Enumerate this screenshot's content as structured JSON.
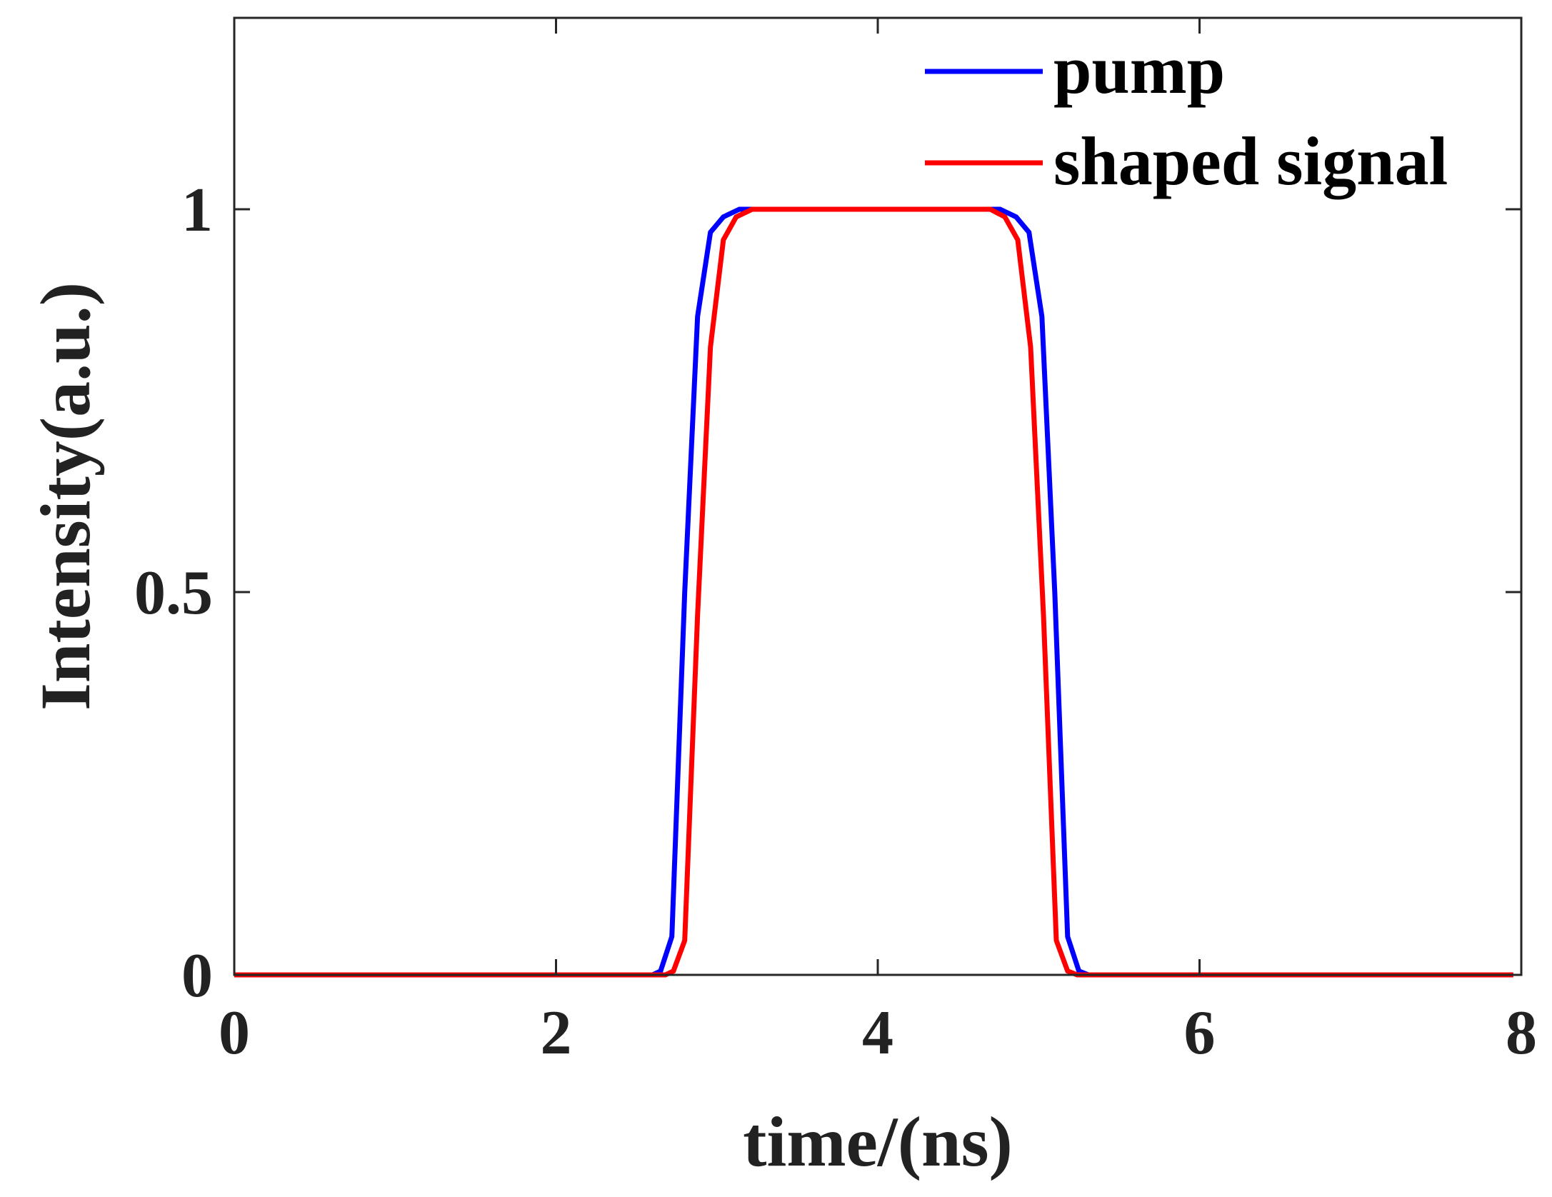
{
  "chart_data": {
    "type": "line",
    "xlabel": "time/(ns)",
    "ylabel": "Intensity(a.u.)",
    "xlim": [
      0,
      8
    ],
    "ylim": [
      0,
      1.25
    ],
    "xticks": [
      0,
      2,
      4,
      6,
      8
    ],
    "xtick_labels": [
      "0",
      "2",
      "4",
      "6",
      "8"
    ],
    "yticks": [
      0,
      0.5,
      1
    ],
    "ytick_labels": [
      "0",
      "0.5",
      "1"
    ],
    "grid": false,
    "legend_position": "top-right",
    "series": [
      {
        "name": "pump",
        "color": "#0000ff",
        "x": [
          0,
          2.6,
          2.65,
          2.72,
          2.8,
          2.88,
          2.96,
          3.04,
          3.14,
          3.3,
          4.6,
          4.76,
          4.86,
          4.94,
          5.02,
          5.1,
          5.18,
          5.25,
          5.31,
          7.95
        ],
        "y": [
          0,
          0,
          0.005,
          0.05,
          0.5,
          0.86,
          0.97,
          0.99,
          1.0,
          1.0,
          1.0,
          1.0,
          0.99,
          0.97,
          0.86,
          0.5,
          0.05,
          0.005,
          0,
          0
        ]
      },
      {
        "name": "shaped signal",
        "color": "#ff0000",
        "x": [
          0,
          2.68,
          2.73,
          2.8,
          2.88,
          2.96,
          3.04,
          3.12,
          3.22,
          3.35,
          4.55,
          4.7,
          4.79,
          4.87,
          4.95,
          5.03,
          5.11,
          5.18,
          5.24,
          7.95
        ],
        "y": [
          0,
          0,
          0.005,
          0.045,
          0.47,
          0.82,
          0.96,
          0.99,
          1.0,
          1.0,
          1.0,
          1.0,
          0.99,
          0.96,
          0.82,
          0.47,
          0.045,
          0.005,
          0,
          0
        ]
      }
    ]
  }
}
